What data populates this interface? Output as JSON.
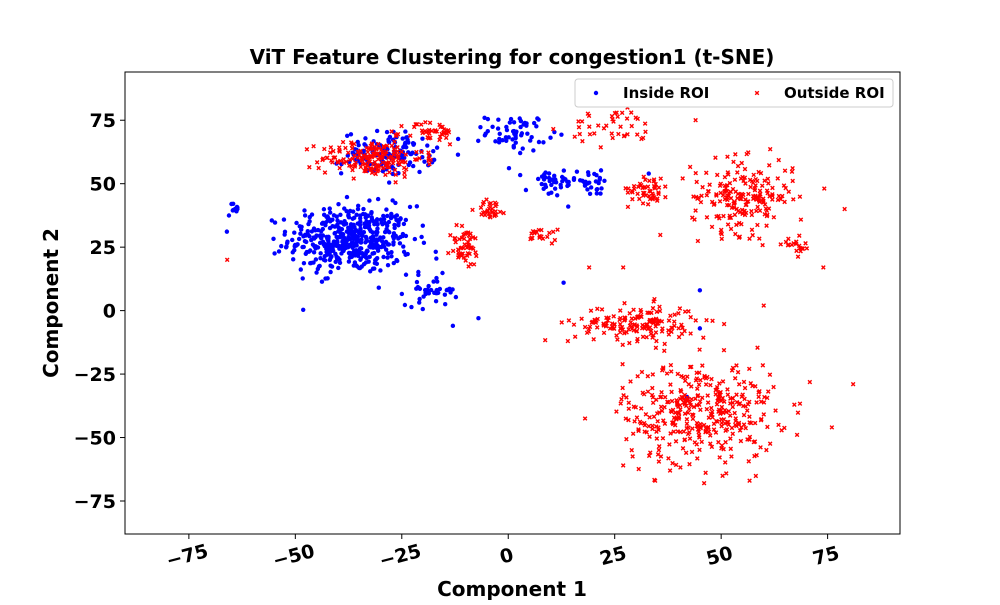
{
  "chart_data": {
    "type": "scatter",
    "title": "ViT Feature Clustering for congestion1 (t-SNE)",
    "xlabel": "Component 1",
    "ylabel": "Component 2",
    "xlim": [
      -90,
      92
    ],
    "ylim": [
      -88,
      94
    ],
    "xticks": [
      -75,
      -50,
      -25,
      0,
      25,
      50,
      75
    ],
    "yticks": [
      75,
      50,
      25,
      0,
      -25,
      -50,
      -75
    ],
    "xtick_labels": [
      "−75",
      "−50",
      "−25",
      "0",
      "25",
      "50",
      "75"
    ],
    "ytick_labels": [
      "75",
      "50",
      "25",
      "0",
      "−25",
      "−50",
      "−75"
    ],
    "grid": false,
    "legend_position": "top-right",
    "series": [
      {
        "name": "Inside ROI",
        "color": "#0000ff",
        "marker": "circle",
        "clusters": [
          {
            "center": [
              -37,
              28
            ],
            "spread": [
              12,
              11
            ],
            "count": 480
          },
          {
            "center": [
              -28,
              62
            ],
            "spread": [
              9,
              7
            ],
            "count": 130
          },
          {
            "center": [
              2,
              70
            ],
            "spread": [
              6,
              6
            ],
            "count": 60
          },
          {
            "center": [
              10,
              50
            ],
            "spread": [
              5,
              5
            ],
            "count": 40
          },
          {
            "center": [
              20,
              50
            ],
            "spread": [
              4,
              4
            ],
            "count": 25
          },
          {
            "center": [
              -64,
              40
            ],
            "spread": [
              1.5,
              2
            ],
            "count": 10
          },
          {
            "center": [
              -18,
              8
            ],
            "spread": [
              5,
              5
            ],
            "count": 40
          }
        ],
        "points": [
          [
            -65,
            42
          ],
          [
            13,
            11
          ],
          [
            45,
            8
          ],
          [
            45,
            -7
          ],
          [
            42,
            -34
          ],
          [
            33,
            54
          ],
          [
            -7,
            -3
          ],
          [
            -13,
            -6
          ]
        ]
      },
      {
        "name": "Outside ROI",
        "color": "#ff0000",
        "marker": "x",
        "clusters": [
          {
            "center": [
              -32,
              60
            ],
            "spread": [
              10,
              6
            ],
            "count": 180
          },
          {
            "center": [
              -18,
              70
            ],
            "spread": [
              5,
              4
            ],
            "count": 40
          },
          {
            "center": [
              -10,
              25
            ],
            "spread": [
              3,
              7
            ],
            "count": 50
          },
          {
            "center": [
              -4,
              40
            ],
            "spread": [
              3,
              3
            ],
            "count": 30
          },
          {
            "center": [
              25,
              72
            ],
            "spread": [
              9,
              6
            ],
            "count": 40
          },
          {
            "center": [
              33,
              48
            ],
            "spread": [
              4,
              5
            ],
            "count": 50
          },
          {
            "center": [
              55,
              45
            ],
            "spread": [
              10,
              12
            ],
            "count": 200
          },
          {
            "center": [
              68,
              25
            ],
            "spread": [
              3,
              3
            ],
            "count": 20
          },
          {
            "center": [
              30,
              -5
            ],
            "spread": [
              12,
              6
            ],
            "count": 160
          },
          {
            "center": [
              45,
              -40
            ],
            "spread": [
              15,
              17
            ],
            "count": 380
          },
          {
            "center": [
              8,
              30
            ],
            "spread": [
              3,
              3
            ],
            "count": 20
          }
        ],
        "points": [
          [
            -66,
            20
          ],
          [
            28,
            80
          ],
          [
            27,
            17
          ],
          [
            19,
            17
          ],
          [
            60,
            2
          ],
          [
            44,
            75
          ],
          [
            74,
            17
          ],
          [
            79,
            40
          ],
          [
            81,
            -29
          ],
          [
            76,
            -46
          ],
          [
            46,
            -68
          ],
          [
            27,
            -61
          ],
          [
            29,
            -55
          ],
          [
            14,
            -12
          ],
          [
            38,
            -63
          ]
        ]
      }
    ]
  }
}
